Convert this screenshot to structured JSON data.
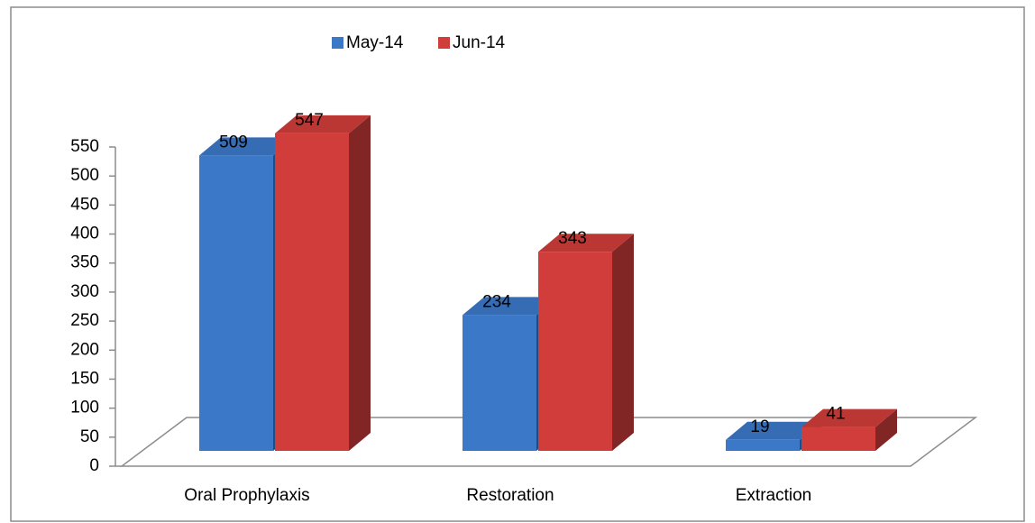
{
  "chart_data": {
    "type": "bar3d",
    "categories": [
      "Oral Prophylaxis",
      "Restoration",
      "Extraction"
    ],
    "series": [
      {
        "name": "May-14",
        "color": "#3b78c8",
        "values": [
          509,
          234,
          19
        ]
      },
      {
        "name": "Jun-14",
        "color": "#d03d3a",
        "values": [
          547,
          343,
          41
        ]
      }
    ],
    "ylim": [
      0,
      550
    ],
    "yticks": [
      0,
      50,
      100,
      150,
      200,
      250,
      300,
      350,
      400,
      450,
      500,
      550
    ],
    "legend": "top"
  }
}
